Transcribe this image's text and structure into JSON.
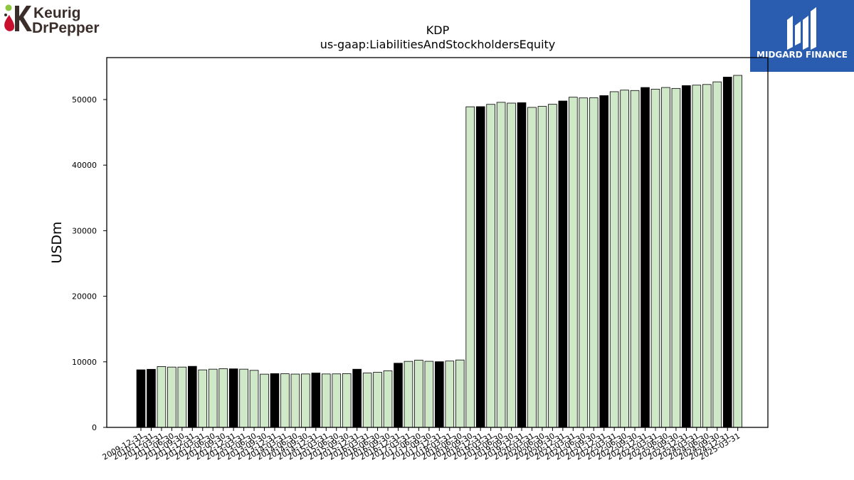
{
  "logos": {
    "left": {
      "line1": "Keurig",
      "line2": "DrPepper",
      "icon": "keurig-drpepper-logo",
      "colors": [
        "#8dc63f",
        "#c8102e"
      ]
    },
    "right": {
      "label": "MIDGARD FINANCE",
      "icon": "midgard-finance-logo",
      "color": "#2a5db0"
    }
  },
  "chart_data": {
    "type": "bar",
    "title": "KDP",
    "subtitle": "us-gaap:LiabilitiesAndStockholdersEquity",
    "xlabel": "",
    "ylabel": "USDm",
    "ylim": [
      0,
      56400
    ],
    "yticks": [
      0,
      10000,
      20000,
      30000,
      40000,
      50000
    ],
    "grid": false,
    "colors": {
      "annual": "#000000",
      "quarterly": "#cfe8c8",
      "edge": "#000000"
    },
    "categories": [
      "2009-12-31",
      "2010-12-31",
      "2011-03-31",
      "2011-06-30",
      "2011-09-30",
      "2011-12-31",
      "2012-03-31",
      "2012-06-30",
      "2012-09-30",
      "2012-12-31",
      "2013-03-31",
      "2013-06-30",
      "2013-09-30",
      "2013-12-31",
      "2014-03-31",
      "2014-06-30",
      "2014-09-30",
      "2014-12-31",
      "2015-03-31",
      "2015-06-30",
      "2015-09-30",
      "2015-12-31",
      "2016-03-31",
      "2016-06-30",
      "2016-09-30",
      "2016-12-31",
      "2017-03-31",
      "2017-06-30",
      "2017-09-30",
      "2017-12-31",
      "2018-03-31",
      "2018-06-30",
      "2018-09-30",
      "2018-12-31",
      "2019-03-31",
      "2019-06-30",
      "2019-09-30",
      "2019-12-31",
      "2020-03-31",
      "2020-06-30",
      "2020-09-30",
      "2020-12-31",
      "2021-03-31",
      "2021-06-30",
      "2021-09-30",
      "2021-12-31",
      "2022-03-31",
      "2022-06-30",
      "2022-09-30",
      "2022-12-31",
      "2023-03-31",
      "2023-06-30",
      "2023-09-30",
      "2023-12-31",
      "2024-03-31",
      "2024-06-30",
      "2024-09-30",
      "2024-12-31",
      "2025-03-31"
    ],
    "values": [
      8780,
      8860,
      9280,
      9200,
      9200,
      9310,
      8770,
      8880,
      8950,
      8930,
      8880,
      8700,
      8120,
      8200,
      8180,
      8130,
      8150,
      8290,
      8150,
      8160,
      8200,
      8870,
      8290,
      8400,
      8640,
      9790,
      10070,
      10250,
      10080,
      10020,
      10120,
      10280,
      48900,
      48920,
      49270,
      49580,
      49460,
      49520,
      48810,
      48960,
      49280,
      49780,
      50360,
      50250,
      50270,
      50600,
      51200,
      51440,
      51380,
      51840,
      51590,
      51840,
      51700,
      52130,
      52200,
      52300,
      52700,
      53430,
      53690
    ],
    "annual_flags": [
      1,
      1,
      0,
      0,
      0,
      1,
      0,
      0,
      0,
      1,
      0,
      0,
      0,
      1,
      0,
      0,
      0,
      1,
      0,
      0,
      0,
      1,
      0,
      0,
      0,
      1,
      0,
      0,
      0,
      1,
      0,
      0,
      0,
      1,
      0,
      0,
      0,
      1,
      0,
      0,
      0,
      1,
      0,
      0,
      0,
      1,
      0,
      0,
      0,
      1,
      0,
      0,
      0,
      1,
      0,
      0,
      0,
      1,
      0
    ]
  }
}
